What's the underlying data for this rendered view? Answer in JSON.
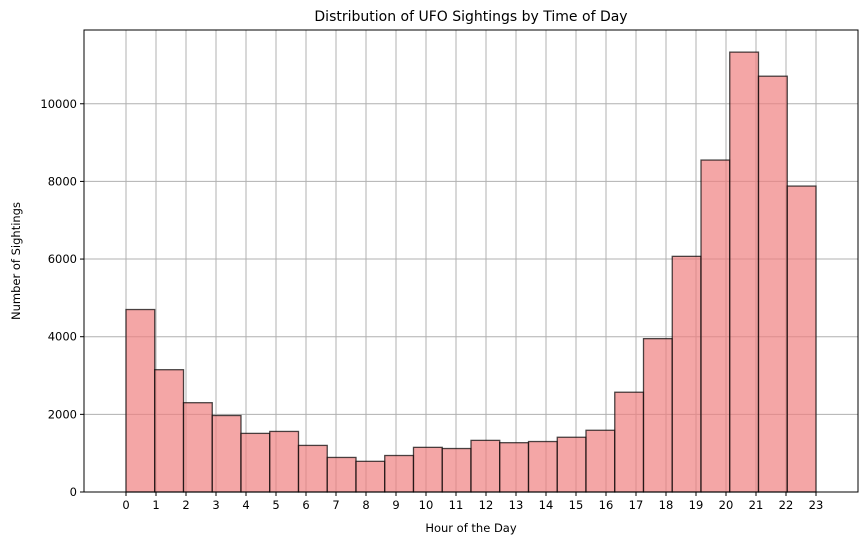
{
  "chart_data": {
    "type": "bar",
    "title": "Distribution of UFO Sightings by Time of Day",
    "xlabel": "Hour of the Day",
    "ylabel": "Number of Sightings",
    "x_range": [
      -1.4,
      24.4
    ],
    "ylim": [
      0,
      11900
    ],
    "y_ticks": [
      0,
      2000,
      4000,
      6000,
      8000,
      10000
    ],
    "grid": true,
    "categories": [
      "0",
      "1",
      "2",
      "3",
      "4",
      "5",
      "6",
      "7",
      "8",
      "9",
      "10",
      "11",
      "12",
      "13",
      "14",
      "15",
      "16",
      "17",
      "18",
      "19",
      "20",
      "21",
      "22",
      "23"
    ],
    "bins": [
      {
        "start": 0.0,
        "end": 0.958,
        "value": 4700
      },
      {
        "start": 0.958,
        "end": 1.917,
        "value": 3150
      },
      {
        "start": 1.917,
        "end": 2.875,
        "value": 2300
      },
      {
        "start": 2.875,
        "end": 3.833,
        "value": 1970
      },
      {
        "start": 3.833,
        "end": 4.792,
        "value": 1510
      },
      {
        "start": 4.792,
        "end": 5.75,
        "value": 1560
      },
      {
        "start": 5.75,
        "end": 6.708,
        "value": 1200
      },
      {
        "start": 6.708,
        "end": 7.667,
        "value": 890
      },
      {
        "start": 7.667,
        "end": 8.625,
        "value": 790
      },
      {
        "start": 8.625,
        "end": 9.583,
        "value": 940
      },
      {
        "start": 9.583,
        "end": 10.542,
        "value": 1150
      },
      {
        "start": 10.542,
        "end": 11.5,
        "value": 1120
      },
      {
        "start": 11.5,
        "end": 12.458,
        "value": 1330
      },
      {
        "start": 12.458,
        "end": 13.417,
        "value": 1270
      },
      {
        "start": 13.417,
        "end": 14.375,
        "value": 1300
      },
      {
        "start": 14.375,
        "end": 15.333,
        "value": 1410
      },
      {
        "start": 15.333,
        "end": 16.292,
        "value": 1590
      },
      {
        "start": 16.292,
        "end": 17.25,
        "value": 2570
      },
      {
        "start": 17.25,
        "end": 18.208,
        "value": 3950
      },
      {
        "start": 18.208,
        "end": 19.167,
        "value": 6070
      },
      {
        "start": 19.167,
        "end": 20.125,
        "value": 8550
      },
      {
        "start": 20.125,
        "end": 21.083,
        "value": 11330
      },
      {
        "start": 21.083,
        "end": 22.042,
        "value": 10710
      },
      {
        "start": 22.042,
        "end": 23.0,
        "value": 7880
      }
    ]
  }
}
